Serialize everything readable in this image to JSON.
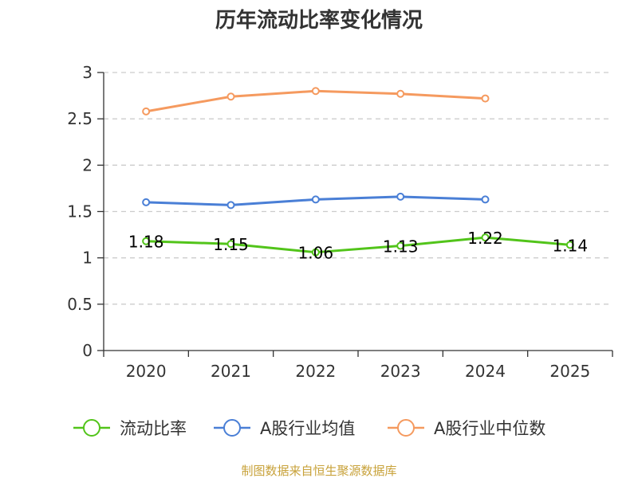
{
  "chart_data": {
    "type": "line",
    "title": "历年流动比率变化情况",
    "xlabel": "",
    "ylabel": "",
    "categories": [
      "2020",
      "2021",
      "2022",
      "2023",
      "2024",
      "2025"
    ],
    "ylim": [
      0,
      3
    ],
    "yticks": [
      "0",
      "0.5",
      "1",
      "1.5",
      "2",
      "2.5",
      "3"
    ],
    "grid": true,
    "legend_position": "bottom",
    "series": [
      {
        "name": "流动比率",
        "color": "#52c41a",
        "values": [
          1.18,
          1.15,
          1.06,
          1.13,
          1.22,
          1.14
        ],
        "labels": [
          "1.18",
          "1.15",
          "1.06",
          "1.13",
          "1.22",
          "1.14"
        ]
      },
      {
        "name": "A股行业均值",
        "color": "#4a7fd6",
        "values": [
          1.6,
          1.57,
          1.63,
          1.66,
          1.63,
          null
        ]
      },
      {
        "name": "A股行业中位数",
        "color": "#f59a5f",
        "values": [
          2.58,
          2.74,
          2.8,
          2.77,
          2.72,
          null
        ]
      }
    ]
  },
  "footer": {
    "source": "制图数据来自恒生聚源数据库"
  }
}
